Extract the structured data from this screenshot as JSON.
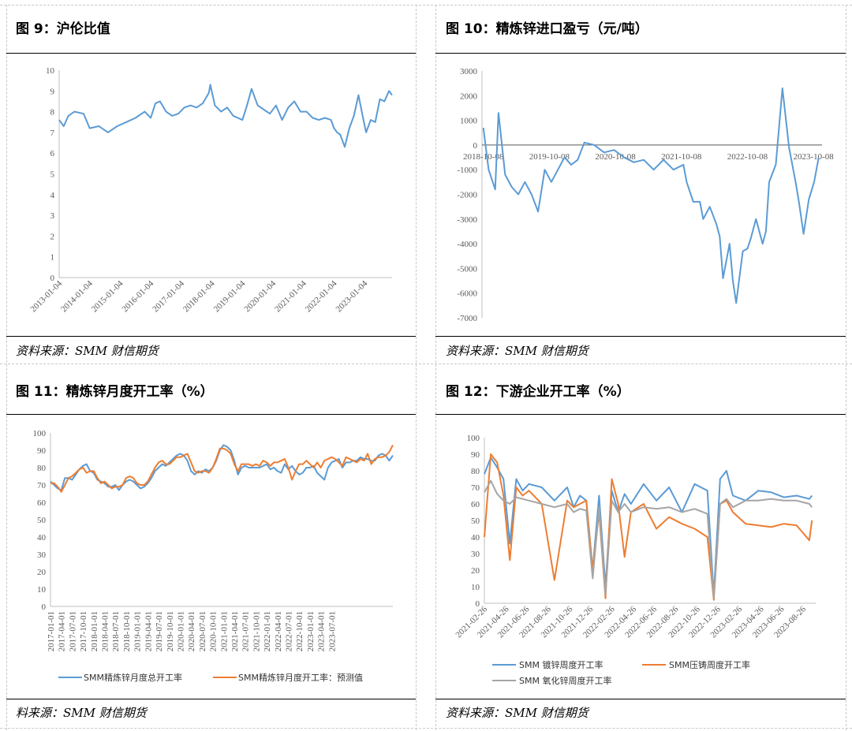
{
  "panels": [
    {
      "title": "图 9：沪伦比值",
      "source": "资料来源：SMM  财信期货",
      "chart_data": {
        "type": "line",
        "x_ticks": [
          "2013-01-04",
          "2014-01-04",
          "2015-01-04",
          "2016-01-04",
          "2017-01-04",
          "2018-01-04",
          "2019-01-04",
          "2020-01-04",
          "2021-01-04",
          "2022-01-04",
          "2023-01-04"
        ],
        "ylim": [
          0,
          10
        ],
        "y_ticks": [
          0,
          1,
          2,
          3,
          4,
          5,
          6,
          7,
          8,
          9,
          10
        ],
        "series": [
          {
            "color": "#5B9BD5",
            "x": [
              2013.0,
              2013.15,
              2013.3,
              2013.5,
              2013.8,
              2014.0,
              2014.3,
              2014.6,
              2014.9,
              2015.2,
              2015.5,
              2015.8,
              2016.0,
              2016.15,
              2016.3,
              2016.5,
              2016.7,
              2016.9,
              2017.1,
              2017.3,
              2017.5,
              2017.7,
              2017.9,
              2017.95,
              2018.1,
              2018.3,
              2018.5,
              2018.7,
              2019.0,
              2019.15,
              2019.3,
              2019.5,
              2019.7,
              2019.9,
              2020.1,
              2020.3,
              2020.5,
              2020.7,
              2020.9,
              2021.1,
              2021.3,
              2021.5,
              2021.7,
              2021.9,
              2022.0,
              2022.1,
              2022.2,
              2022.35,
              2022.5,
              2022.65,
              2022.8,
              2022.95,
              2023.05,
              2023.2,
              2023.35,
              2023.5,
              2023.65,
              2023.8,
              2023.9
            ],
            "y": [
              7.6,
              7.3,
              7.8,
              8.0,
              7.9,
              7.2,
              7.3,
              7.0,
              7.3,
              7.5,
              7.7,
              8.0,
              7.7,
              8.4,
              8.5,
              8.0,
              7.8,
              7.9,
              8.2,
              8.3,
              8.2,
              8.4,
              8.9,
              9.3,
              8.3,
              8.0,
              8.2,
              7.8,
              7.6,
              8.3,
              9.1,
              8.3,
              8.1,
              7.9,
              8.3,
              7.6,
              8.2,
              8.5,
              8.0,
              8.0,
              7.7,
              7.6,
              7.7,
              7.6,
              7.2,
              7.0,
              6.9,
              6.3,
              7.2,
              7.8,
              8.8,
              7.7,
              7.0,
              7.6,
              7.5,
              8.6,
              8.5,
              9.0,
              8.8
            ]
          }
        ]
      }
    },
    {
      "title": "图 10：精炼锌进口盈亏（元/吨）",
      "source": "资料来源：SMM  财信期货",
      "chart_data": {
        "type": "line",
        "x_ticks": [
          "2018-10-08",
          "2019-10-08",
          "2020-10-08",
          "2021-10-08",
          "2022-10-08",
          "2023-10-08"
        ],
        "ylim": [
          -7000,
          3000
        ],
        "y_ticks": [
          3000,
          2000,
          1000,
          0,
          -1000,
          -2000,
          -3000,
          -4000,
          -5000,
          -6000,
          -7000
        ],
        "series": [
          {
            "color": "#5B9BD5",
            "x": [
              2018.77,
              2018.85,
              2018.95,
              2019.0,
              2019.1,
              2019.2,
              2019.3,
              2019.4,
              2019.5,
              2019.6,
              2019.7,
              2019.8,
              2019.9,
              2020.0,
              2020.1,
              2020.2,
              2020.3,
              2020.45,
              2020.6,
              2020.75,
              2020.9,
              2021.05,
              2021.2,
              2021.35,
              2021.5,
              2021.65,
              2021.8,
              2021.85,
              2021.95,
              2022.05,
              2022.1,
              2022.2,
              2022.3,
              2022.35,
              2022.4,
              2022.5,
              2022.55,
              2022.6,
              2022.7,
              2022.77,
              2022.82,
              2022.9,
              2023.0,
              2023.05,
              2023.1,
              2023.2,
              2023.3,
              2023.4,
              2023.5,
              2023.55,
              2023.62,
              2023.7,
              2023.78,
              2023.85
            ],
            "y": [
              700,
              -1000,
              -1800,
              1300,
              -1200,
              -1700,
              -2000,
              -1500,
              -2000,
              -2700,
              -1000,
              -1500,
              -1000,
              -500,
              -800,
              -600,
              100,
              0,
              -300,
              -200,
              -500,
              -700,
              -600,
              -1000,
              -600,
              -1000,
              -800,
              -1500,
              -2300,
              -2300,
              -3000,
              -2500,
              -3200,
              -3700,
              -5400,
              -4000,
              -5500,
              -6400,
              -4300,
              -4200,
              -3800,
              -3000,
              -4000,
              -3500,
              -1500,
              -800,
              2300,
              -100,
              -1500,
              -2300,
              -3600,
              -2200,
              -1500,
              -500
            ]
          }
        ]
      }
    },
    {
      "title": "图 11：精炼锌月度开工率（%）",
      "source": "料来源：SMM  财信期货",
      "chart_data": {
        "type": "line",
        "x_ticks": [
          "2017-01-01",
          "2017-04-01",
          "2017-07-01",
          "2017-10-01",
          "2018-01-01",
          "2018-04-01",
          "2018-07-01",
          "2018-10-01",
          "2019-01-01",
          "2019-04-01",
          "2019-07-01",
          "2019-10-01",
          "2020-01-01",
          "2020-04-01",
          "2020-07-01",
          "2020-10-01",
          "2021-01-01",
          "2021-04-01",
          "2021-07-01",
          "2021-10-01",
          "2022-01-01",
          "2022-04-01",
          "2022-07-01",
          "2022-10-01",
          "2023-01-01",
          "2023-04-01",
          "2023-07-01"
        ],
        "ylim": [
          0,
          100
        ],
        "y_ticks": [
          0,
          10,
          20,
          30,
          40,
          50,
          60,
          70,
          80,
          90,
          100
        ],
        "series": [
          {
            "name": "SMM精炼锌月度总开工率",
            "color": "#5B9BD5",
            "values": [
              72,
              70,
              68,
              67,
              74,
              74,
              73,
              76,
              79,
              81,
              82,
              78,
              77,
              73,
              72,
              71,
              69,
              69,
              70,
              67,
              70,
              72,
              73,
              72,
              70,
              68,
              69,
              71,
              74,
              78,
              80,
              82,
              81,
              83,
              85,
              87,
              88,
              87,
              84,
              78,
              76,
              78,
              77,
              79,
              78,
              80,
              84,
              90,
              93,
              92,
              90,
              84,
              76,
              80,
              81,
              80,
              80,
              80,
              80,
              81,
              82,
              79,
              80,
              78,
              77,
              82,
              79,
              81,
              78,
              76,
              77,
              80,
              80,
              81,
              77,
              75,
              73,
              80,
              83,
              84,
              85,
              80,
              83,
              83,
              84,
              84,
              86,
              85,
              85,
              84,
              84,
              87,
              88,
              87,
              84,
              87
            ]
          },
          {
            "name": "SMM精炼锌月度开工率：预测值",
            "color": "#ED7D31",
            "values": [
              71,
              71,
              69,
              66,
              70,
              74,
              75,
              77,
              79,
              80,
              77,
              78,
              78,
              74,
              71,
              72,
              70,
              68,
              69,
              69,
              70,
              74,
              75,
              74,
              71,
              70,
              70,
              72,
              76,
              80,
              83,
              84,
              82,
              82,
              84,
              86,
              86,
              87,
              88,
              83,
              78,
              77,
              78,
              78,
              77,
              80,
              85,
              91,
              91,
              90,
              88,
              82,
              78,
              82,
              82,
              82,
              81,
              82,
              81,
              84,
              83,
              81,
              83,
              83,
              84,
              85,
              80,
              73,
              78,
              82,
              82,
              84,
              82,
              80,
              83,
              80,
              84,
              85,
              86,
              85,
              83,
              81,
              86,
              85,
              84,
              83,
              85,
              84,
              88,
              82,
              85,
              86,
              86,
              87,
              89,
              93
            ]
          }
        ]
      }
    },
    {
      "title": "图 12：下游企业开工率（%）",
      "source": "资料来源：SMM  财信期货",
      "chart_data": {
        "type": "line",
        "x_ticks": [
          "2021-02-26",
          "2021-04-26",
          "2021-06-26",
          "2021-08-26",
          "2021-10-26",
          "2021-12-26",
          "2022-02-26",
          "2022-04-26",
          "2022-06-26",
          "2022-08-26",
          "2022-10-26",
          "2022-12-26",
          "2023-02-26",
          "2023-04-26",
          "2023-06-26",
          "2023-08-26"
        ],
        "ylim": [
          0,
          100
        ],
        "y_ticks": [
          0,
          10,
          20,
          30,
          40,
          50,
          60,
          70,
          80,
          90,
          100
        ],
        "series": [
          {
            "name": "SMM 镀锌周度开工率",
            "color": "#5B9BD5",
            "x": [
              2021.15,
              2021.2,
              2021.25,
              2021.3,
              2021.35,
              2021.4,
              2021.45,
              2021.5,
              2021.6,
              2021.7,
              2021.8,
              2021.85,
              2021.9,
              2021.95,
              2022.0,
              2022.05,
              2022.1,
              2022.15,
              2022.2,
              2022.25,
              2022.3,
              2022.4,
              2022.5,
              2022.6,
              2022.7,
              2022.8,
              2022.9,
              2022.95,
              2023.0,
              2023.05,
              2023.1,
              2023.2,
              2023.3,
              2023.4,
              2023.5,
              2023.6,
              2023.7,
              2023.72
            ],
            "y": [
              78,
              88,
              82,
              75,
              36,
              75,
              68,
              72,
              70,
              62,
              70,
              58,
              65,
              62,
              20,
              65,
              10,
              68,
              55,
              66,
              60,
              72,
              62,
              70,
              55,
              72,
              68,
              5,
              75,
              80,
              65,
              62,
              68,
              67,
              64,
              65,
              63,
              65
            ]
          },
          {
            "name": "SMM压铸周度开工率",
            "color": "#ED7D31",
            "x": [
              2021.15,
              2021.2,
              2021.25,
              2021.3,
              2021.35,
              2021.4,
              2021.45,
              2021.5,
              2021.6,
              2021.7,
              2021.8,
              2021.85,
              2021.9,
              2021.95,
              2022.0,
              2022.05,
              2022.1,
              2022.15,
              2022.2,
              2022.25,
              2022.3,
              2022.4,
              2022.5,
              2022.6,
              2022.7,
              2022.8,
              2022.9,
              2022.95,
              2023.0,
              2023.05,
              2023.1,
              2023.2,
              2023.3,
              2023.4,
              2023.5,
              2023.6,
              2023.7,
              2023.72
            ],
            "y": [
              40,
              90,
              85,
              65,
              26,
              70,
              65,
              68,
              60,
              14,
              62,
              58,
              60,
              62,
              20,
              55,
              3,
              75,
              60,
              28,
              55,
              60,
              45,
              52,
              48,
              45,
              40,
              2,
              60,
              62,
              55,
              48,
              47,
              46,
              48,
              47,
              38,
              50
            ]
          },
          {
            "name": "SMM 氧化锌周度开工率",
            "color": "#A5A5A5",
            "x": [
              2021.15,
              2021.2,
              2021.25,
              2021.3,
              2021.35,
              2021.4,
              2021.45,
              2021.5,
              2021.6,
              2021.7,
              2021.8,
              2021.85,
              2021.9,
              2021.95,
              2022.0,
              2022.05,
              2022.1,
              2022.15,
              2022.2,
              2022.25,
              2022.3,
              2022.4,
              2022.5,
              2022.6,
              2022.7,
              2022.8,
              2022.9,
              2022.95,
              2023.0,
              2023.05,
              2023.1,
              2023.2,
              2023.3,
              2023.4,
              2023.5,
              2023.6,
              2023.7,
              2023.72
            ],
            "y": [
              67,
              74,
              66,
              62,
              60,
              64,
              63,
              62,
              60,
              58,
              60,
              55,
              57,
              56,
              15,
              58,
              5,
              62,
              55,
              60,
              55,
              58,
              57,
              58,
              55,
              57,
              54,
              3,
              60,
              63,
              58,
              62,
              62,
              63,
              62,
              62,
              60,
              58
            ]
          }
        ]
      }
    }
  ]
}
